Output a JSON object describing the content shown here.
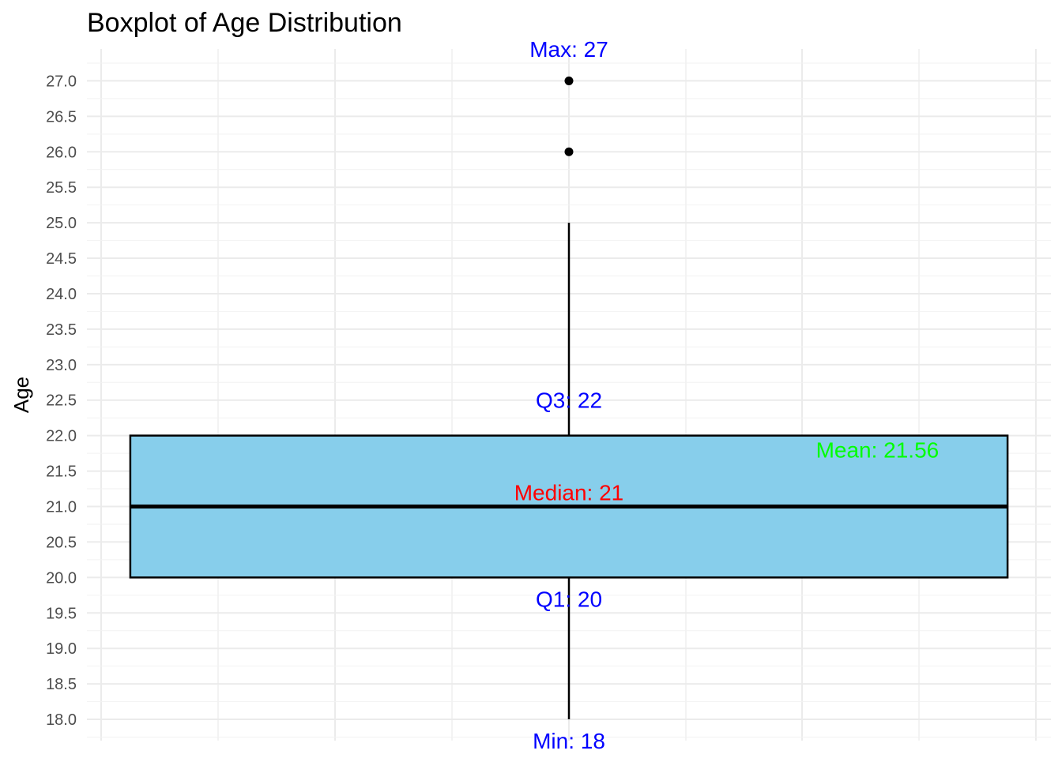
{
  "chart_data": {
    "type": "boxplot",
    "title": "Boxplot of Age Distribution",
    "xlabel": "",
    "ylabel": "Age",
    "ylim": [
      17.7,
      27.45
    ],
    "yticks": [
      "18.0",
      "18.5",
      "19.0",
      "19.5",
      "20.0",
      "20.5",
      "21.0",
      "21.5",
      "22.0",
      "22.5",
      "23.0",
      "23.5",
      "24.0",
      "24.5",
      "25.0",
      "25.5",
      "26.0",
      "26.5",
      "27.0"
    ],
    "grid": true,
    "box": {
      "min_whisker": 18,
      "q1": 20,
      "median": 21,
      "q3": 22,
      "max_whisker": 25,
      "fill": "#87CEEB"
    },
    "outliers": [
      26,
      27
    ],
    "annotations": [
      {
        "text": "Max: 27",
        "value": 27.45,
        "pos": 0.5,
        "color": "#0000FF"
      },
      {
        "text": "Q3: 22",
        "value": 22.5,
        "pos": 0.5,
        "color": "#0000FF"
      },
      {
        "text": "Mean: 21.56",
        "value": 21.8,
        "pos": 0.82,
        "color": "#00FF00"
      },
      {
        "text": "Median: 21",
        "value": 21.2,
        "pos": 0.5,
        "color": "#FF0000"
      },
      {
        "text": "Q1: 20",
        "value": 19.7,
        "pos": 0.5,
        "color": "#0000FF"
      },
      {
        "text": "Min: 18",
        "value": 17.7,
        "pos": 0.5,
        "color": "#0000FF"
      }
    ]
  }
}
